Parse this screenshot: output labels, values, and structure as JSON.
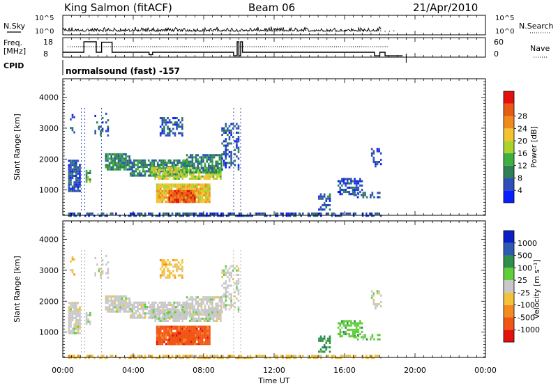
{
  "header": {
    "station": "King Salmon (fitACF)",
    "beam": "Beam 06",
    "date": "21/Apr/2010"
  },
  "labels": {
    "nsky": "N.Sky",
    "nsearch": "N.Search",
    "freq": "Freq.",
    "freq_unit": "[MHz]",
    "nave": "Nave",
    "cpid": "CPID",
    "mode": "normalsound (fast) -157"
  },
  "colors": {
    "power": [
      "#0a1fff",
      "#2e4fb8",
      "#2e7f55",
      "#3cb041",
      "#a9d22a",
      "#f2c230",
      "#ef8a1c",
      "#e85a14",
      "#e40f0f"
    ],
    "velocity": [
      "#e40f0f",
      "#f05515",
      "#f38b1f",
      "#f3c23a",
      "#c8c8c8",
      "#5fce3a",
      "#2e8e4a",
      "#2e5bb0",
      "#0a1fc8"
    ]
  },
  "chart_data": [
    {
      "type": "line",
      "name": "noise",
      "yticks_left": [
        "10^5",
        "10^0"
      ],
      "yticks_right": [
        "10^5",
        "10^0"
      ]
    },
    {
      "type": "line",
      "name": "frequency-nave",
      "yticks_left": [
        "18",
        "8"
      ],
      "yticks_right": [
        "60",
        "0"
      ],
      "freq_steps": [
        {
          "t": 0.0,
          "v": 10.9
        },
        {
          "t": 1.2,
          "v": 17.2
        },
        {
          "t": 1.9,
          "v": 10.9
        },
        {
          "t": 2.2,
          "v": 16.9
        },
        {
          "t": 2.8,
          "v": 10.9
        },
        {
          "t": 4.9,
          "v": 9.5
        },
        {
          "t": 5.1,
          "v": 10.9
        },
        {
          "t": 9.7,
          "v": 8.8
        },
        {
          "t": 9.9,
          "v": 17.2
        },
        {
          "t": 10.0,
          "v": 8.8
        },
        {
          "t": 10.1,
          "v": 17.2
        },
        {
          "t": 10.2,
          "v": 10.9
        },
        {
          "t": 17.7,
          "v": 8.8
        },
        {
          "t": 18.0,
          "v": 10.9
        },
        {
          "t": 18.3,
          "v": 8.8
        },
        {
          "t": 19.3,
          "v": 8.8
        }
      ]
    },
    {
      "type": "heatmap",
      "name": "power",
      "ylabel": "Slant Range [km]",
      "yticks": [
        "1000",
        "2000",
        "3000",
        "4000"
      ],
      "ylim": [
        180,
        4600
      ],
      "colorbar_label": "Power [dB]",
      "colorbar_ticks": [
        "4",
        "8",
        "12",
        "16",
        "20",
        "24",
        "28"
      ]
    },
    {
      "type": "heatmap",
      "name": "velocity",
      "ylabel": "Slant Range [km]",
      "yticks": [
        "1000",
        "2000",
        "3000",
        "4000"
      ],
      "ylim": [
        180,
        4600
      ],
      "colorbar_label": "Velocity [m s⁻¹]",
      "colorbar_ticks": [
        "1000",
        "500",
        "100",
        "25",
        "-25",
        "-100",
        "-500",
        "-1000"
      ]
    }
  ],
  "xaxis": {
    "label": "Time UT",
    "ticks": [
      "00:00",
      "04:00",
      "08:00",
      "12:00",
      "16:00",
      "20:00",
      "00:00"
    ],
    "xlim": [
      0,
      24
    ]
  }
}
